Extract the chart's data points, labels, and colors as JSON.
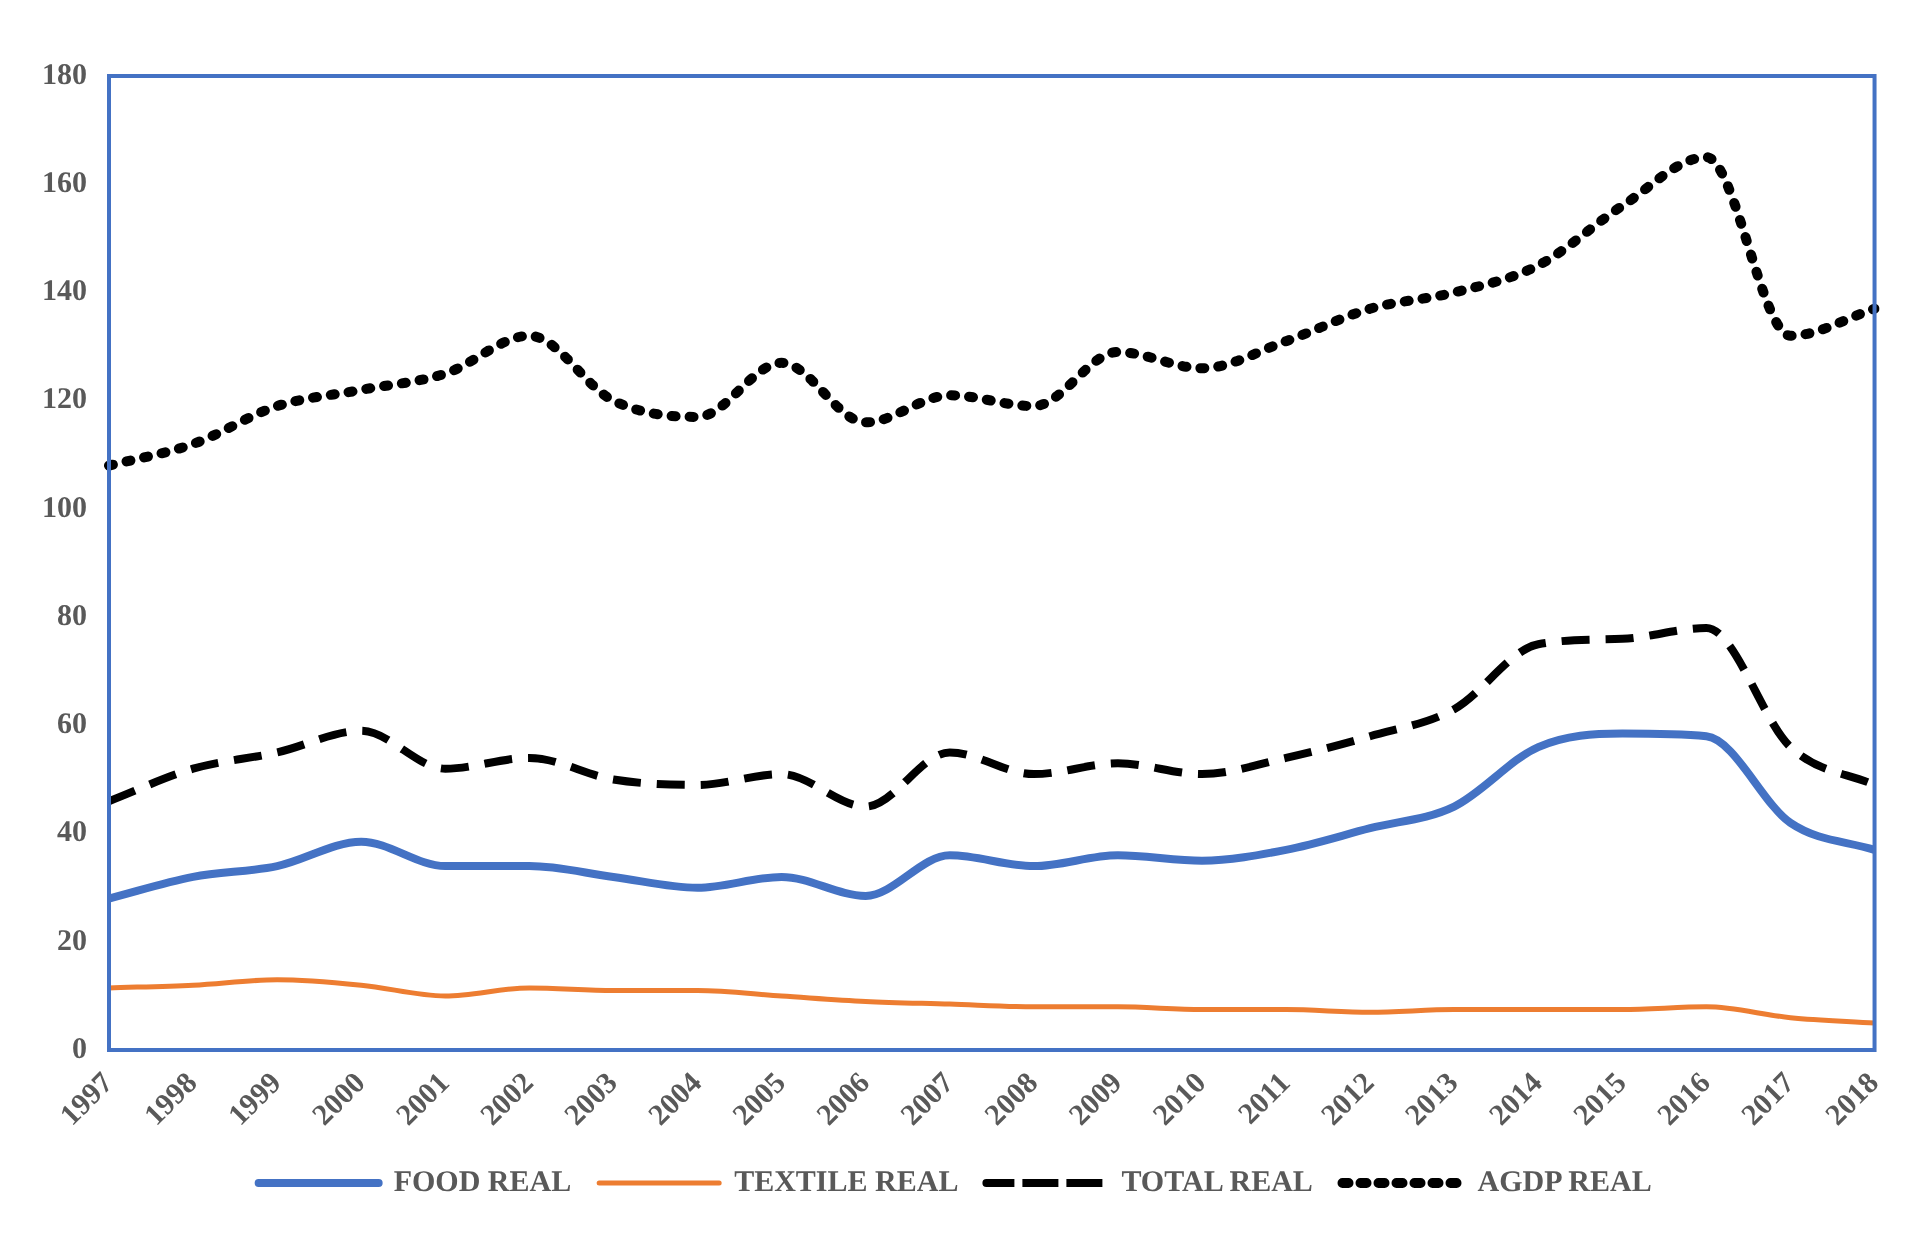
{
  "chart_data": {
    "type": "line",
    "categories": [
      "1997",
      "1998",
      "1999",
      "2000",
      "2001",
      "2002",
      "2003",
      "2004",
      "2005",
      "2006",
      "2007",
      "2008",
      "2009",
      "2010",
      "2011",
      "2012",
      "2013",
      "2014",
      "2015",
      "2016",
      "2017",
      "2018"
    ],
    "series": [
      {
        "name": "FOOD REAL",
        "color": "#4472c4",
        "line_style": "solid",
        "values": [
          28,
          32,
          34,
          38.5,
          34,
          34,
          32,
          30,
          32,
          28.5,
          36,
          34,
          36,
          35,
          37,
          41,
          45,
          56,
          58.5,
          58,
          42,
          37
        ]
      },
      {
        "name": "TEXTILE REAL",
        "color": "#ed7d31",
        "line_style": "solid",
        "values": [
          11.5,
          12,
          13,
          12,
          10,
          11.5,
          11,
          11,
          10,
          9,
          8.5,
          8,
          8,
          7.5,
          7.5,
          7,
          7.5,
          7.5,
          7.5,
          8,
          6,
          5
        ]
      },
      {
        "name": "TOTAL REAL",
        "color": "#000000",
        "line_style": "dashed",
        "values": [
          46,
          52,
          55,
          59,
          52,
          54,
          50,
          49,
          51,
          45,
          55,
          51,
          53,
          51,
          54,
          58,
          63,
          75,
          76,
          78,
          56,
          49
        ]
      },
      {
        "name": "AGDP REAL",
        "color": "#000000",
        "line_style": "dotted",
        "values": [
          108,
          112,
          119,
          122,
          125,
          132,
          120,
          117,
          127,
          116,
          121,
          119,
          129,
          126,
          131,
          137,
          140,
          145,
          156,
          165,
          132,
          137
        ]
      }
    ],
    "ylim": [
      0,
      180
    ],
    "yticks": [
      0,
      20,
      40,
      60,
      80,
      100,
      120,
      140,
      160,
      180
    ],
    "grid": false,
    "legend": "bottom",
    "marker": "none"
  }
}
